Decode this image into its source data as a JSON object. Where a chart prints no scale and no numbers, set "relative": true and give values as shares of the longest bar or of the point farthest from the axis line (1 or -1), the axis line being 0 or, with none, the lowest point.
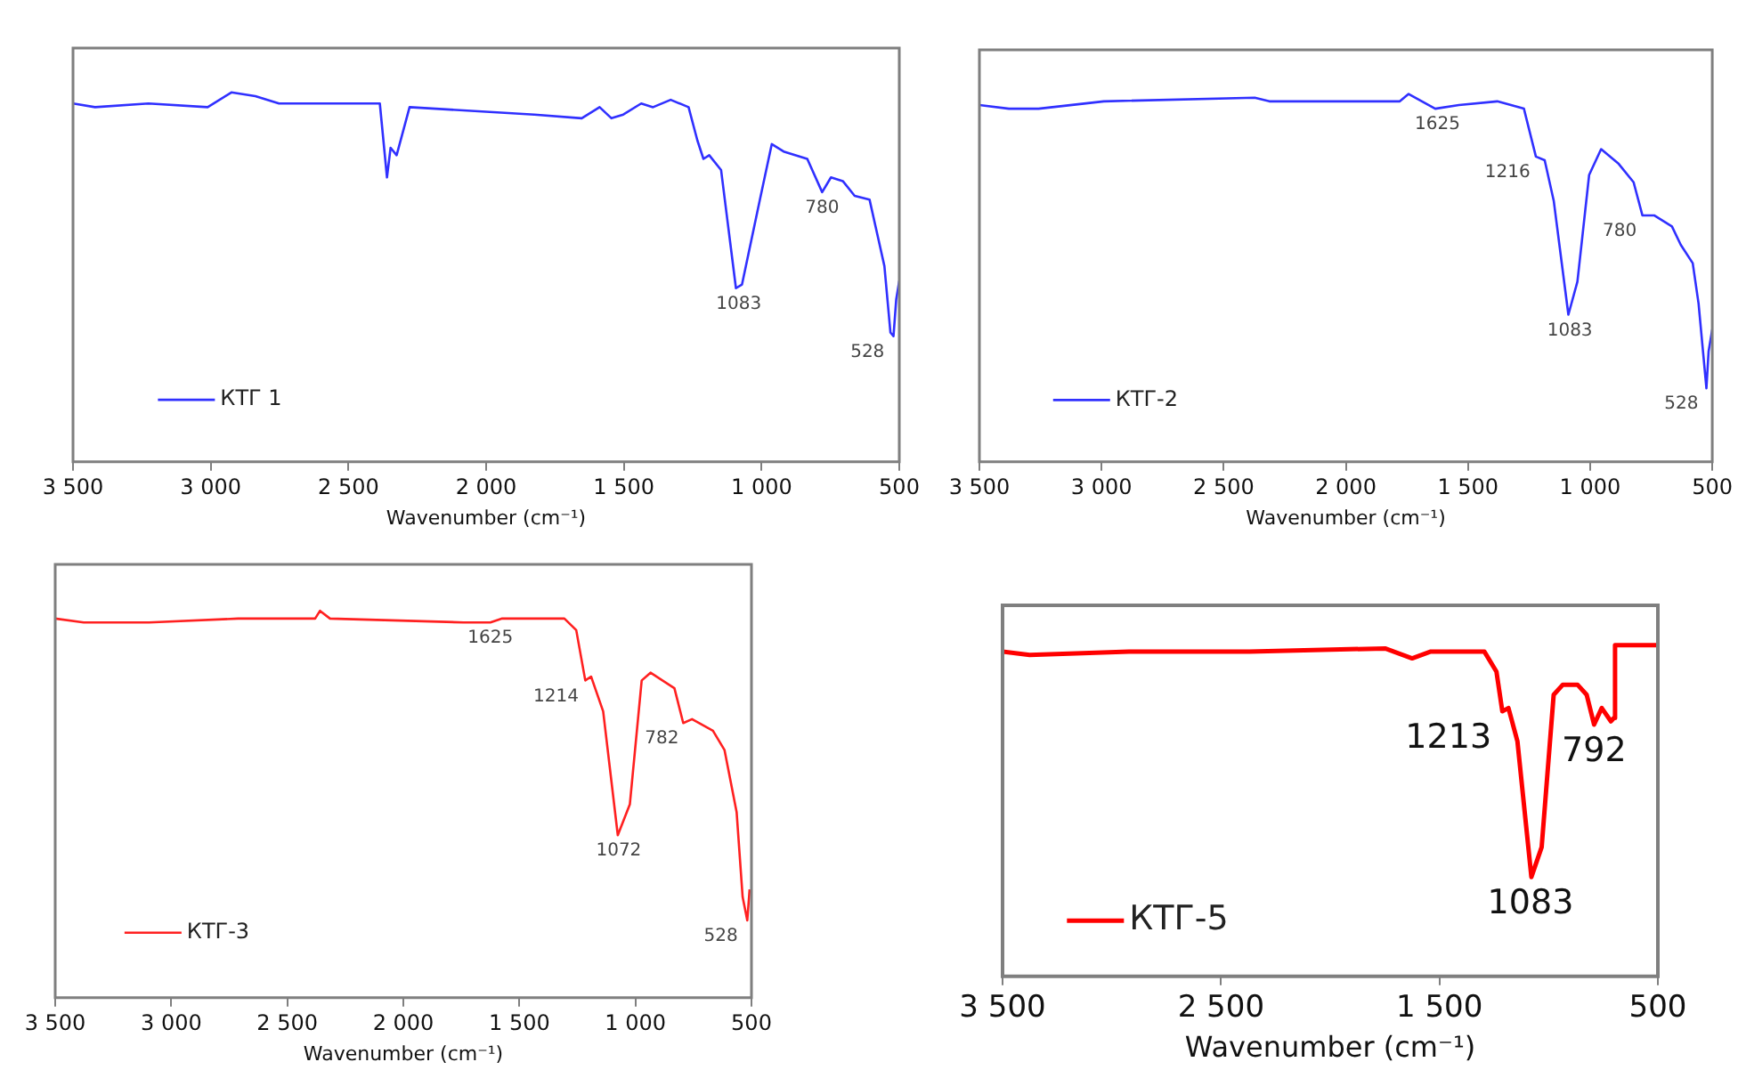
{
  "chart_data": [
    {
      "type": "line",
      "relative": true,
      "xlabel": "Wavenumber (cm⁻¹)",
      "legend": "bottom left",
      "xlim": [
        3500,
        500
      ],
      "xticks": [
        {
          "value": 3500,
          "label": "3 500"
        },
        {
          "value": 3000,
          "label": "3 000"
        },
        {
          "value": 2500,
          "label": "2 500"
        },
        {
          "value": 2000,
          "label": "2 000"
        },
        {
          "value": 1500,
          "label": "1 500"
        },
        {
          "value": 1000,
          "label": "1 000"
        },
        {
          "value": 500,
          "label": "500"
        }
      ],
      "x": [
        3500,
        3420,
        3226,
        3011,
        2925,
        2838,
        2752,
        2386,
        2360,
        2347,
        2325,
        2278,
        1825,
        1653,
        1588,
        1545,
        1502,
        1437,
        1394,
        1330,
        1265,
        1233,
        1211,
        1190,
        1147,
        1093,
        1071,
        1006,
        963,
        920,
        834,
        780,
        748,
        705,
        662,
        608,
        575,
        554,
        532,
        521,
        511,
        500
      ],
      "series": [
        {
          "name": "КТГ 1",
          "color": "#3030ff",
          "values": [
            0.97,
            0.96,
            0.97,
            0.96,
            1.0,
            0.99,
            0.97,
            0.97,
            0.77,
            0.85,
            0.83,
            0.96,
            0.94,
            0.93,
            0.96,
            0.93,
            0.94,
            0.97,
            0.96,
            0.98,
            0.96,
            0.87,
            0.82,
            0.83,
            0.79,
            0.47,
            0.48,
            0.71,
            0.86,
            0.84,
            0.82,
            0.73,
            0.77,
            0.76,
            0.72,
            0.71,
            0.6,
            0.53,
            0.35,
            0.34,
            0.44,
            0.49
          ]
        }
      ],
      "annotations": [
        {
          "text": "1083",
          "x": 1083,
          "y": 0.47
        },
        {
          "text": "780",
          "x": 780,
          "y": 0.73
        },
        {
          "text": "528",
          "x": 528,
          "y": 0.34
        }
      ]
    },
    {
      "type": "line",
      "relative": true,
      "xlabel": "Wavenumber (cm⁻¹)",
      "legend": "bottom left",
      "xlim": [
        3500,
        500
      ],
      "xticks": [
        {
          "value": 3500,
          "label": "3 500"
        },
        {
          "value": 3000,
          "label": "3 000"
        },
        {
          "value": 2500,
          "label": "2 500"
        },
        {
          "value": 2000,
          "label": "2 000"
        },
        {
          "value": 1500,
          "label": "1 500"
        },
        {
          "value": 1000,
          "label": "1 000"
        },
        {
          "value": 500,
          "label": "500"
        }
      ],
      "x": [
        3500,
        3379,
        3258,
        2991,
        2373,
        2313,
        2022,
        1779,
        1743,
        1634,
        1537,
        1380,
        1271,
        1222,
        1186,
        1149,
        1089,
        1052,
        1004,
        955,
        883,
        822,
        786,
        738,
        665,
        629,
        580,
        556,
        524,
        515,
        500
      ],
      "series": [
        {
          "name": "КТГ-2",
          "color": "#3030ff",
          "values": [
            0.97,
            0.96,
            0.96,
            0.98,
            0.99,
            0.98,
            0.98,
            0.98,
            1.0,
            0.96,
            0.97,
            0.98,
            0.96,
            0.83,
            0.82,
            0.71,
            0.4,
            0.49,
            0.78,
            0.85,
            0.81,
            0.76,
            0.67,
            0.67,
            0.64,
            0.59,
            0.54,
            0.43,
            0.2,
            0.3,
            0.36
          ]
        }
      ],
      "annotations": [
        {
          "text": "1625",
          "x": 1625,
          "y": 0.96
        },
        {
          "text": "1216",
          "x": 1216,
          "y": 0.83
        },
        {
          "text": "1083",
          "x": 1083,
          "y": 0.4
        },
        {
          "text": "780",
          "x": 780,
          "y": 0.67
        },
        {
          "text": "528",
          "x": 528,
          "y": 0.2
        }
      ]
    },
    {
      "type": "line",
      "relative": true,
      "xlabel": "Wavenumber (cm⁻¹)",
      "legend": "bottom left",
      "xlim": [
        3500,
        500
      ],
      "xticks": [
        {
          "value": 3500,
          "label": "3 500"
        },
        {
          "value": 3000,
          "label": "3 000"
        },
        {
          "value": 2500,
          "label": "2 500"
        },
        {
          "value": 2000,
          "label": "2 000"
        },
        {
          "value": 1500,
          "label": "1 500"
        },
        {
          "value": 1000,
          "label": "1 000"
        },
        {
          "value": 500,
          "label": "500"
        }
      ],
      "x": [
        3500,
        3377,
        3096,
        2712,
        2380,
        2359,
        2316,
        1740,
        1625,
        1574,
        1306,
        1255,
        1216,
        1191,
        1139,
        1076,
        1024,
        973,
        935,
        832,
        794,
        756,
        666,
        616,
        564,
        538,
        518,
        508
      ],
      "series": [
        {
          "name": "КТГ-3",
          "color": "#ff2020",
          "values": [
            0.98,
            0.97,
            0.97,
            0.98,
            0.98,
            1.0,
            0.98,
            0.97,
            0.97,
            0.98,
            0.98,
            0.95,
            0.82,
            0.83,
            0.74,
            0.42,
            0.5,
            0.82,
            0.84,
            0.8,
            0.71,
            0.72,
            0.69,
            0.64,
            0.48,
            0.26,
            0.2,
            0.28
          ]
        }
      ],
      "annotations": [
        {
          "text": "1625",
          "x": 1625,
          "y": 0.97
        },
        {
          "text": "1214",
          "x": 1214,
          "y": 0.82
        },
        {
          "text": "1072",
          "x": 1072,
          "y": 0.42
        },
        {
          "text": "782",
          "x": 782,
          "y": 0.71
        },
        {
          "text": "528",
          "x": 528,
          "y": 0.2
        }
      ]
    },
    {
      "type": "line",
      "relative": true,
      "xlabel": "Wavenumber (cm⁻¹)",
      "legend": "bottom left",
      "xlim": [
        3500,
        500
      ],
      "xticks": [
        {
          "value": 3500,
          "label": "3 500"
        },
        {
          "value": 2500,
          "label": "2 500"
        },
        {
          "value": 1500,
          "label": "1 500"
        },
        {
          "value": 500,
          "label": "500"
        }
      ],
      "x": [
        3500,
        3376,
        2921,
        2370,
        1749,
        1625,
        1542,
        1294,
        1239,
        1212,
        1184,
        1143,
        1079,
        1032,
        977,
        936,
        867,
        826,
        792,
        757,
        715,
        701,
        696,
        500
      ],
      "series": [
        {
          "name": "КТГ-5",
          "color": "#ff0000",
          "values": [
            0.98,
            0.97,
            0.98,
            0.98,
            0.99,
            0.96,
            0.98,
            0.98,
            0.92,
            0.8,
            0.81,
            0.71,
            0.3,
            0.39,
            0.85,
            0.88,
            0.88,
            0.85,
            0.76,
            0.81,
            0.77,
            0.78,
            1.0,
            1.0
          ]
        }
      ],
      "annotations": [
        {
          "text": "1213",
          "x": 1213,
          "y": 0.8
        },
        {
          "text": "792",
          "x": 792,
          "y": 0.76
        },
        {
          "text": "1083",
          "x": 1083,
          "y": 0.3
        }
      ]
    }
  ]
}
